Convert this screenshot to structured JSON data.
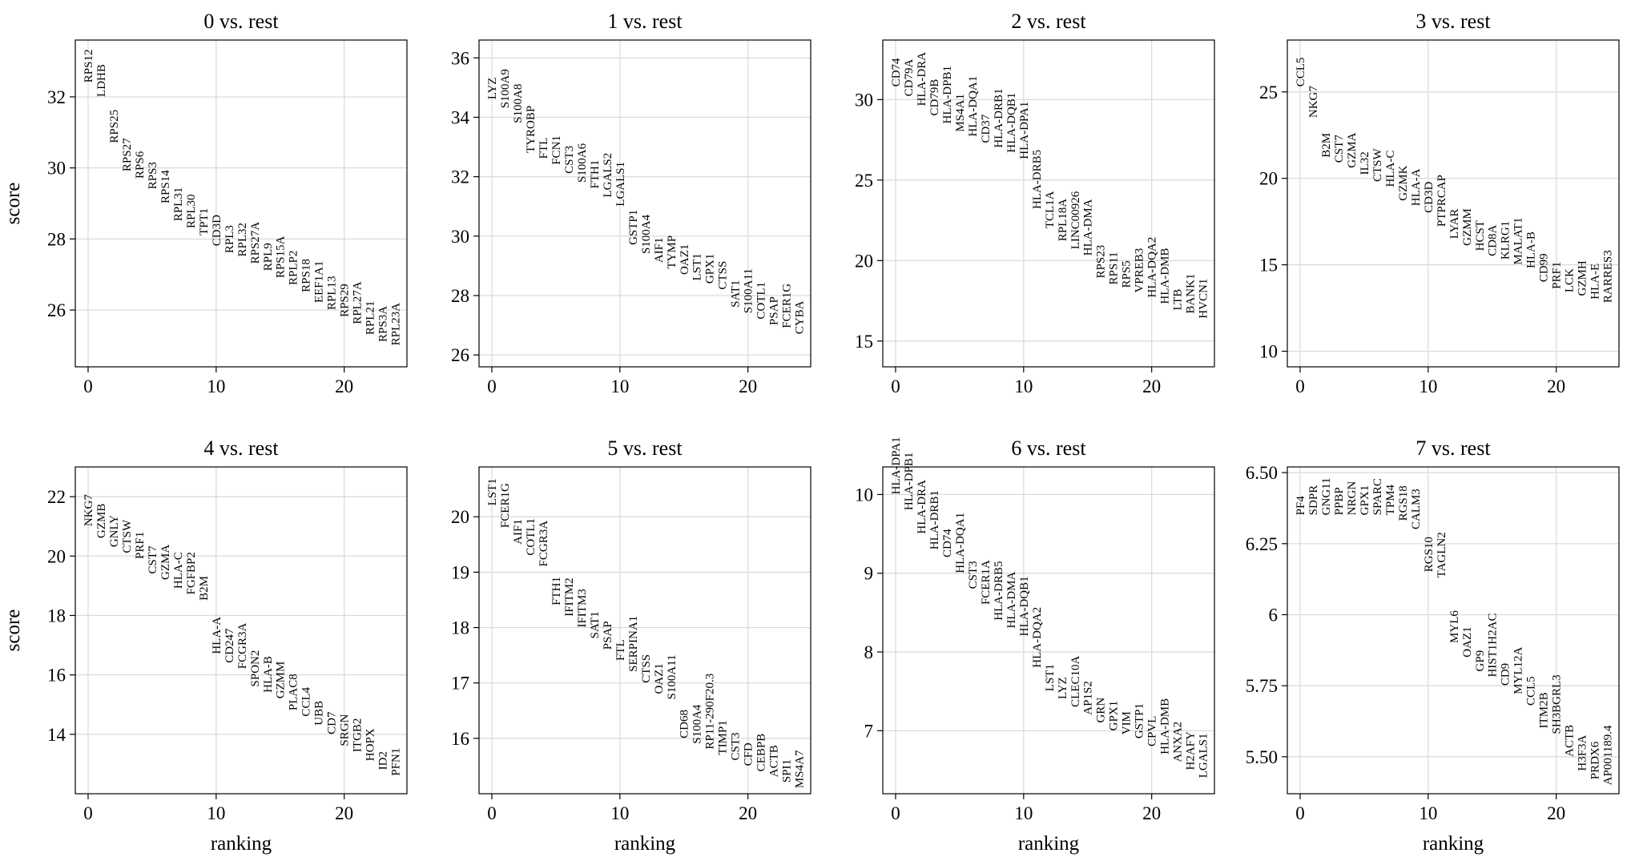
{
  "chart_data": [
    {
      "type": "scatter",
      "title": "0 vs. rest",
      "xlabel": "",
      "ylabel": "score",
      "ylim": [
        24.4,
        33.6
      ],
      "yticks": [
        26,
        28,
        30,
        32
      ],
      "xticks": [
        0,
        10,
        20
      ],
      "genes": [
        "RPS12",
        "LDHB",
        "RPS25",
        "RPS27",
        "RPS6",
        "RPS3",
        "RPS14",
        "RPL31",
        "RPL30",
        "TPT1",
        "CD3D",
        "RPL3",
        "RPL32",
        "RPS27A",
        "RPL9",
        "RPS15A",
        "RPLP2",
        "RPS18",
        "EEF1A1",
        "RPL13",
        "RPS29",
        "RPL27A",
        "RPL21",
        "RPS3A",
        "RPL23A"
      ],
      "scores": [
        32.4,
        32.0,
        30.7,
        29.9,
        29.7,
        29.4,
        29.0,
        28.5,
        28.3,
        28.1,
        27.8,
        27.6,
        27.5,
        27.3,
        27.1,
        26.9,
        26.7,
        26.5,
        26.2,
        26.0,
        25.8,
        25.6,
        25.3,
        25.1,
        25.0
      ]
    },
    {
      "type": "scatter",
      "title": "1 vs. rest",
      "xlabel": "",
      "ylabel": "",
      "ylim": [
        25.6,
        36.6
      ],
      "yticks": [
        26,
        28,
        30,
        32,
        34,
        36
      ],
      "xticks": [
        0,
        10,
        20
      ],
      "genes": [
        "LYZ",
        "S100A9",
        "S100A8",
        "TYROBP",
        "FTL",
        "FCN1",
        "CST3",
        "S100A6",
        "FTH1",
        "LGALS2",
        "LGALS1",
        "GSTP1",
        "S100A4",
        "AIF1",
        "TYMP",
        "OAZ1",
        "LST1",
        "GPX1",
        "CTSS",
        "SAT1",
        "S100A11",
        "COTL1",
        "PSAP",
        "FCER1G",
        "CYBA"
      ],
      "scores": [
        34.6,
        34.3,
        33.8,
        32.8,
        32.6,
        32.4,
        32.1,
        31.8,
        31.6,
        31.3,
        31.0,
        29.7,
        29.4,
        29.1,
        28.9,
        28.7,
        28.5,
        28.4,
        28.2,
        27.6,
        27.4,
        27.2,
        27.0,
        26.9,
        26.7
      ]
    },
    {
      "type": "scatter",
      "title": "2 vs. rest",
      "xlabel": "",
      "ylabel": "",
      "ylim": [
        13.4,
        33.7
      ],
      "yticks": [
        15,
        20,
        25,
        30
      ],
      "xticks": [
        0,
        10,
        20
      ],
      "genes": [
        "CD74",
        "CD79A",
        "HLA-DRA",
        "CD79B",
        "HLA-DPB1",
        "MS4A1",
        "HLA-DQA1",
        "CD37",
        "HLA-DRB1",
        "HLA-DQB1",
        "HLA-DPA1",
        "HLA-DRB5",
        "TCL1A",
        "RPL18A",
        "LINC00926",
        "HLA-DMA",
        "RPS23",
        "RPS11",
        "RPS5",
        "VPREB3",
        "HLA-DQA2",
        "HLA-DMB",
        "LTB",
        "BANK1",
        "HVCN1"
      ],
      "scores": [
        30.8,
        30.2,
        29.6,
        29.0,
        28.5,
        28.0,
        27.7,
        27.3,
        27.0,
        26.7,
        26.3,
        23.2,
        22.0,
        21.2,
        20.7,
        20.3,
        18.9,
        18.5,
        18.3,
        18.0,
        17.7,
        17.3,
        16.9,
        16.7,
        16.4
      ]
    },
    {
      "type": "scatter",
      "title": "3 vs. rest",
      "xlabel": "",
      "ylabel": "",
      "ylim": [
        9.1,
        28.0
      ],
      "yticks": [
        10,
        15,
        20,
        25
      ],
      "xticks": [
        0,
        10,
        20
      ],
      "genes": [
        "CCL5",
        "NKG7",
        "B2M",
        "CST7",
        "GZMA",
        "IL32",
        "CTSW",
        "HLA-C",
        "GZMK",
        "HLA-A",
        "CD3D",
        "PTPRCAP",
        "LYAR",
        "GZMM",
        "HCST",
        "CD8A",
        "KLRG1",
        "MALAT1",
        "HLA-B",
        "CD99",
        "PRF1",
        "LCK",
        "GZMH",
        "HLA-E",
        "RARRES3"
      ],
      "scores": [
        25.3,
        23.5,
        21.2,
        20.9,
        20.6,
        20.2,
        19.8,
        19.5,
        18.7,
        18.4,
        18.0,
        17.2,
        16.5,
        16.1,
        15.8,
        15.5,
        15.3,
        15.0,
        14.8,
        14.0,
        13.6,
        13.4,
        13.2,
        13.0,
        12.8
      ]
    },
    {
      "type": "scatter",
      "title": "4 vs. rest",
      "xlabel": "ranking",
      "ylabel": "score",
      "ylim": [
        12.0,
        23.0
      ],
      "yticks": [
        14,
        16,
        18,
        20,
        22
      ],
      "xticks": [
        0,
        10,
        20
      ],
      "genes": [
        "NKG7",
        "GZMB",
        "GNLY",
        "CTSW",
        "PRF1",
        "CST7",
        "GZMA",
        "HLA-C",
        "FGFBP2",
        "B2M",
        "HLA-A",
        "CD247",
        "FCGR3A",
        "SPON2",
        "HLA-B",
        "GZMM",
        "PLAC8",
        "CCL4",
        "UBB",
        "CD7",
        "SRGN",
        "ITGB2",
        "HOPX",
        "ID2",
        "PFN1"
      ],
      "scores": [
        21.0,
        20.6,
        20.3,
        20.1,
        19.9,
        19.4,
        19.2,
        18.9,
        18.7,
        18.5,
        16.7,
        16.4,
        16.2,
        15.6,
        15.4,
        15.2,
        14.8,
        14.6,
        14.3,
        14.0,
        13.6,
        13.4,
        13.1,
        12.8,
        12.6
      ]
    },
    {
      "type": "scatter",
      "title": "5 vs. rest",
      "xlabel": "ranking",
      "ylabel": "",
      "ylim": [
        15.0,
        20.9
      ],
      "yticks": [
        16,
        17,
        18,
        19,
        20
      ],
      "xticks": [
        0,
        10,
        20
      ],
      "genes": [
        "LST1",
        "FCER1G",
        "AIF1",
        "COTL1",
        "FCGR3A",
        "FTH1",
        "IFITM2",
        "IFITM3",
        "SAT1",
        "PSAP",
        "FTL",
        "SERPINA1",
        "CTSS",
        "OAZ1",
        "S100A11",
        "CD68",
        "S100A4",
        "RP11-290F20.3",
        "TIMP1",
        "CST3",
        "CFD",
        "CEBPB",
        "ACTB",
        "SPI1",
        "MS4A7"
      ],
      "scores": [
        20.2,
        19.8,
        19.5,
        19.3,
        19.1,
        18.4,
        18.2,
        18.0,
        17.8,
        17.6,
        17.4,
        17.2,
        17.0,
        16.8,
        16.7,
        16.0,
        15.9,
        15.8,
        15.7,
        15.6,
        15.5,
        15.4,
        15.3,
        15.2,
        15.1
      ]
    },
    {
      "type": "scatter",
      "title": "6 vs. rest",
      "xlabel": "ranking",
      "ylabel": "",
      "ylim": [
        6.2,
        10.35
      ],
      "yticks": [
        7,
        8,
        9,
        10
      ],
      "xticks": [
        0,
        10,
        20
      ],
      "genes": [
        "HLA-DPA1",
        "HLA-DPB1",
        "HLA-DRA",
        "HLA-DRB1",
        "CD74",
        "HLA-DQA1",
        "CST3",
        "FCER1A",
        "HLA-DRB5",
        "HLA-DMA",
        "HLA-DQB1",
        "HLA-DQA2",
        "LST1",
        "LYZ",
        "CLEC10A",
        "AP1S2",
        "GRN",
        "GPX1",
        "VIM",
        "GSTP1",
        "CPVL",
        "HLA-DMB",
        "ANXA2",
        "H2AFY",
        "LGALS1"
      ],
      "scores": [
        10.0,
        9.8,
        9.5,
        9.3,
        9.2,
        9.0,
        8.8,
        8.6,
        8.4,
        8.3,
        8.2,
        7.8,
        7.5,
        7.4,
        7.3,
        7.2,
        7.1,
        7.0,
        6.95,
        6.9,
        6.8,
        6.7,
        6.6,
        6.5,
        6.4
      ]
    },
    {
      "type": "scatter",
      "title": "7 vs. rest",
      "xlabel": "ranking",
      "ylabel": "",
      "ylim": [
        5.37,
        6.52
      ],
      "yticks": [
        5.5,
        5.75,
        6.0,
        6.25,
        6.5
      ],
      "xticks": [
        0,
        10,
        20
      ],
      "genes": [
        "PF4",
        "SDPR",
        "GNG11",
        "PPBP",
        "NRGN",
        "GPX1",
        "SPARC",
        "TPM4",
        "RGS18",
        "CALM3",
        "RGS10",
        "TAGLN2",
        "MYL6",
        "OAZ1",
        "GP9",
        "HIST1H2AC",
        "CD9",
        "MYL12A",
        "CCL5",
        "ITM2B",
        "SH3BGRL3",
        "ACTB",
        "H3F3A",
        "PRDX6",
        "AP001189.4"
      ],
      "scores": [
        6.35,
        6.35,
        6.35,
        6.35,
        6.35,
        6.35,
        6.35,
        6.35,
        6.33,
        6.3,
        6.15,
        6.13,
        5.9,
        5.85,
        5.8,
        5.78,
        5.75,
        5.72,
        5.68,
        5.6,
        5.58,
        5.5,
        5.45,
        5.42,
        5.4
      ]
    }
  ]
}
